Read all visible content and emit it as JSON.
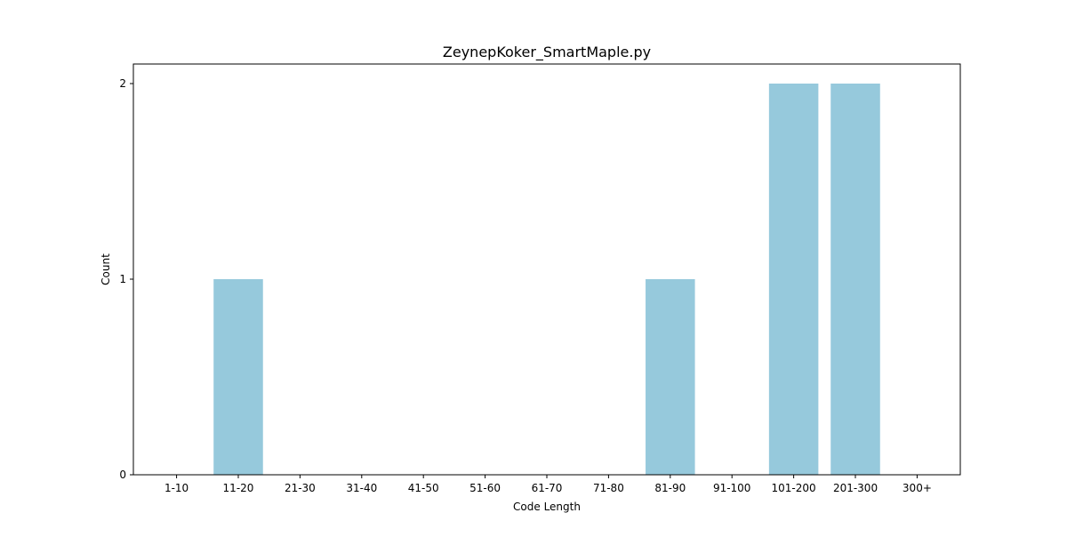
{
  "chart_data": {
    "type": "bar",
    "title": "ZeynepKoker_SmartMaple.py",
    "xlabel": "Code Length",
    "ylabel": "Count",
    "categories": [
      "1-10",
      "11-20",
      "21-30",
      "31-40",
      "41-50",
      "51-60",
      "61-70",
      "71-80",
      "81-90",
      "91-100",
      "101-200",
      "201-300",
      "300+"
    ],
    "values": [
      0,
      1,
      0,
      0,
      0,
      0,
      0,
      0,
      1,
      0,
      2,
      2,
      0
    ],
    "ylim": [
      0,
      2.1
    ],
    "yticks": [
      0,
      1,
      2
    ],
    "grid": false,
    "bar_color": "#96c9dc"
  }
}
